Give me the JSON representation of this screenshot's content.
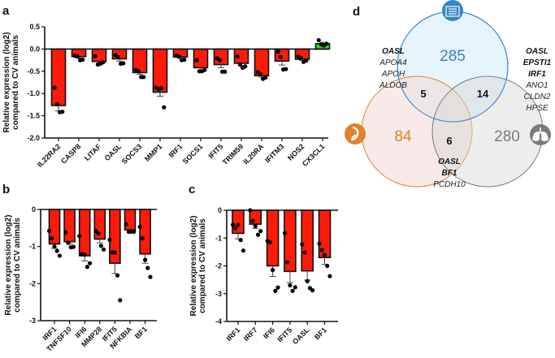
{
  "panel_labels": {
    "a": "a",
    "b": "b",
    "c": "c",
    "d": "d"
  },
  "chart_data": [
    {
      "id": "a",
      "type": "bar",
      "ylabel": [
        "Relative expression (log2)",
        "compared to CV animals"
      ],
      "ylim": [
        -2.0,
        0.5
      ],
      "yticks": [
        "0.5",
        "0.0",
        "-0.5",
        "-1.0",
        "-1.5",
        "-2.0"
      ],
      "ytick_values": [
        0.5,
        0,
        -0.5,
        -1,
        -1.5,
        -2
      ],
      "categories": [
        "IL22RA2",
        "CASP8",
        "LITAF",
        "OASL",
        "SOCS3",
        "MMP1",
        "IRF1",
        "SOCS1",
        "IFIT5",
        "TRIM59",
        "IL20RA",
        "IFITM3",
        "NOS2",
        "CX3CL1"
      ],
      "values": [
        -1.27,
        -0.17,
        -0.28,
        -0.22,
        -0.53,
        -0.97,
        -0.18,
        -0.42,
        -0.35,
        -0.32,
        -0.6,
        -0.27,
        -0.23,
        0.12
      ],
      "sem": [
        0.12,
        0.03,
        0.04,
        0.05,
        0.04,
        0.09,
        0.03,
        0.06,
        0.07,
        0.05,
        0.03,
        0.09,
        0.03,
        0.03
      ],
      "points": [
        [
          -0.87,
          -1.24,
          -1.42,
          -1.41
        ],
        [
          -0.15,
          -0.17,
          -0.25,
          -0.24
        ],
        [
          -0.16,
          -0.35,
          -0.33,
          -0.3
        ],
        [
          -0.14,
          -0.18,
          -0.33,
          -0.32
        ],
        [
          -0.47,
          -0.5,
          -0.63,
          -0.63
        ],
        [
          -0.87,
          -0.9,
          -0.88,
          -1.31
        ],
        [
          -0.15,
          -0.17,
          -0.25,
          -0.24
        ],
        [
          -0.25,
          -0.5,
          -0.5,
          -0.47
        ],
        [
          -0.21,
          -0.25,
          -0.51,
          -0.51
        ],
        [
          -0.17,
          -0.35,
          -0.42,
          -0.39
        ],
        [
          -0.52,
          -0.56,
          -0.67,
          -0.64
        ],
        [
          -0.06,
          -0.18,
          -0.46,
          -0.45
        ],
        [
          -0.17,
          -0.2,
          -0.29,
          -0.26
        ],
        [
          0.2,
          0.1,
          0.08,
          0.12
        ]
      ],
      "colors": {
        "down": "#ff1a0a",
        "up": "#22dd22"
      }
    },
    {
      "id": "b",
      "type": "bar",
      "ylabel": [
        "Relative expression (log2)",
        "compared to CV animals"
      ],
      "ylim": [
        -3,
        0
      ],
      "yticks": [
        "0",
        "-1",
        "-2",
        "-3"
      ],
      "ytick_values": [
        0,
        -1,
        -2,
        -3
      ],
      "categories": [
        "IRF1",
        "TNFSF10",
        "IFI6",
        "MMP28",
        "IFIT5",
        "NFKBIA",
        "BF1"
      ],
      "values": [
        -0.93,
        -0.87,
        -1.25,
        -0.8,
        -1.45,
        -0.55,
        -1.2
      ],
      "sem": [
        0.12,
        0.06,
        0.14,
        0.1,
        0.28,
        0.03,
        0.25
      ],
      "points": [
        [
          -0.58,
          -0.78,
          -1.0,
          -1.12,
          -1.25
        ],
        [
          -0.62,
          -0.9,
          -1.02,
          -1.01
        ],
        [
          -0.72,
          -1.2,
          -1.22,
          -1.55,
          -1.45
        ],
        [
          -0.58,
          -0.65,
          -0.98,
          -1.08
        ],
        [
          -0.82,
          -1.16,
          -1.16,
          -1.78,
          -2.45
        ],
        [
          -0.4,
          -0.6,
          -0.6,
          -0.6
        ],
        [
          -0.47,
          -0.78,
          -1.36,
          -1.58,
          -1.82
        ]
      ],
      "colors": {
        "down": "#ff1a0a",
        "up": "#22dd22"
      }
    },
    {
      "id": "c",
      "type": "bar",
      "ylabel": [
        "Relative expression (log2)",
        "compared to CV animals"
      ],
      "ylim": [
        -4,
        0
      ],
      "yticks": [
        "0",
        "-1",
        "-2",
        "-3",
        "-4"
      ],
      "ytick_values": [
        0,
        -1,
        -2,
        -3,
        -4
      ],
      "categories": [
        "IRF1",
        "IRF7",
        "IFI6",
        "IFIT5",
        "OASL",
        "BF1"
      ],
      "values": [
        -0.83,
        -0.5,
        -2.0,
        -2.2,
        -2.18,
        -1.7
      ],
      "sem": [
        0.2,
        0.15,
        0.38,
        0.4,
        0.33,
        0.25
      ],
      "points": [
        [
          -0.52,
          -0.65,
          -0.52,
          -1.07,
          -1.45
        ],
        [
          0,
          -0.38,
          -0.57,
          -0.88,
          -0.75
        ],
        [
          -1.1,
          -1.15,
          -2.15,
          -2.9,
          -2.78
        ],
        [
          -0.82,
          -1.87,
          -2.7,
          -2.9,
          -2.77
        ],
        [
          -1.23,
          -1.52,
          -2.55,
          -2.8,
          -2.88
        ],
        [
          -1.2,
          -1.43,
          -1.6,
          -2.0,
          -2.37
        ]
      ],
      "colors": {
        "down": "#ff1a0a",
        "up": "#22dd22"
      }
    }
  ],
  "venn": {
    "sets": [
      {
        "name": "intestine",
        "icon": "intestine-icon",
        "count": "285",
        "color": "#3b82c9",
        "fill": "#e6f4fb"
      },
      {
        "name": "other-organ",
        "icon": "organ-icon",
        "count": "84",
        "color": "#e0822c",
        "fill": "#f5e6e4"
      },
      {
        "name": "lung",
        "icon": "lungs-icon",
        "count": "280",
        "color": "#7a7a7a",
        "fill": "#ececec"
      }
    ],
    "intersections": {
      "blue_orange": "5",
      "blue_grey": "14",
      "orange_grey": "6"
    },
    "genes_left": {
      "bold": [
        "OASL"
      ],
      "normal": [
        "APOA4",
        "APOH",
        "ALDOB"
      ]
    },
    "genes_right": {
      "bold": [
        "OASL",
        "EPSTI1",
        "IRF1"
      ],
      "normal": [
        "ANO1",
        "CLDN2",
        "HPSE"
      ]
    },
    "genes_bottom": {
      "bold": [
        "OASL",
        "BF1"
      ],
      "normal": [
        "PCDH10"
      ]
    }
  }
}
